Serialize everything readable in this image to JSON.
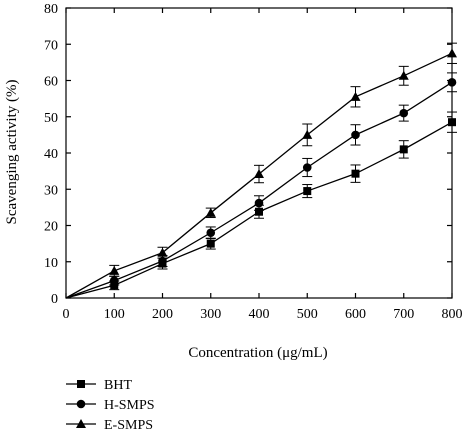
{
  "chart_data": {
    "type": "line",
    "title": "",
    "xlabel": "Concentration (μg/mL)",
    "ylabel": "Scavenging activity (%)",
    "xlim": [
      0,
      800
    ],
    "ylim": [
      0,
      80
    ],
    "x_ticks": [
      0,
      100,
      200,
      300,
      400,
      500,
      600,
      700,
      800
    ],
    "y_ticks": [
      0,
      10,
      20,
      30,
      40,
      50,
      60,
      70,
      80
    ],
    "grid": false,
    "legend_position": "bottom-left, below plot",
    "series": [
      {
        "name": "BHT",
        "marker": "square",
        "x": [
          0,
          100,
          200,
          300,
          400,
          500,
          600,
          700,
          800
        ],
        "values": [
          0,
          3.5,
          9.5,
          15,
          23.8,
          29.5,
          34.3,
          41,
          48.5
        ],
        "errors": [
          0,
          1.2,
          1.5,
          1.5,
          1.8,
          1.8,
          2.4,
          2.4,
          2.8
        ]
      },
      {
        "name": "H-SMPS",
        "marker": "circle",
        "x": [
          0,
          100,
          200,
          300,
          400,
          500,
          600,
          700,
          800
        ],
        "values": [
          0,
          4.8,
          10.2,
          18,
          26.2,
          36,
          45,
          51,
          59.5
        ],
        "errors": [
          0,
          1.2,
          1.5,
          1.6,
          2.0,
          2.5,
          2.8,
          2.2,
          2.6
        ]
      },
      {
        "name": "E-SMPS",
        "marker": "triangle",
        "x": [
          0,
          100,
          200,
          300,
          400,
          500,
          600,
          700,
          800
        ],
        "values": [
          0,
          7.5,
          12.5,
          23.5,
          34.2,
          45,
          55.5,
          61.3,
          67.5
        ],
        "errors": [
          0,
          1.5,
          1.5,
          1.3,
          2.4,
          3.0,
          2.8,
          2.6,
          2.8
        ]
      }
    ]
  }
}
